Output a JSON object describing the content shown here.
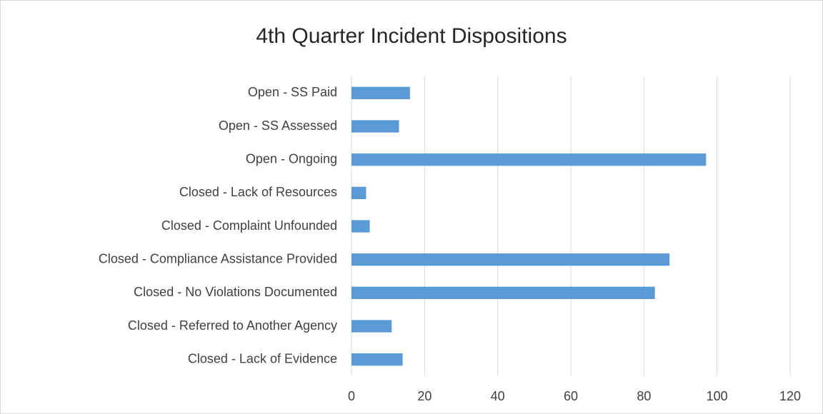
{
  "chart_data": {
    "type": "barh",
    "title": "4th Quarter Incident Dispositions",
    "categories": [
      "Open - SS Paid",
      "Open - SS Assessed",
      "Open - Ongoing",
      "Closed - Lack of Resources",
      "Closed - Complaint Unfounded",
      "Closed - Compliance Assistance Provided",
      "Closed - No Violations Documented",
      "Closed - Referred to Another Agency",
      "Closed - Lack of Evidence"
    ],
    "values": [
      16,
      13,
      97,
      4,
      5,
      87,
      83,
      11,
      14
    ],
    "color": "#5b9bd5",
    "xlim": [
      0,
      120
    ],
    "xticks": [
      0,
      20,
      40,
      60,
      80,
      100,
      120
    ],
    "grid": true
  }
}
